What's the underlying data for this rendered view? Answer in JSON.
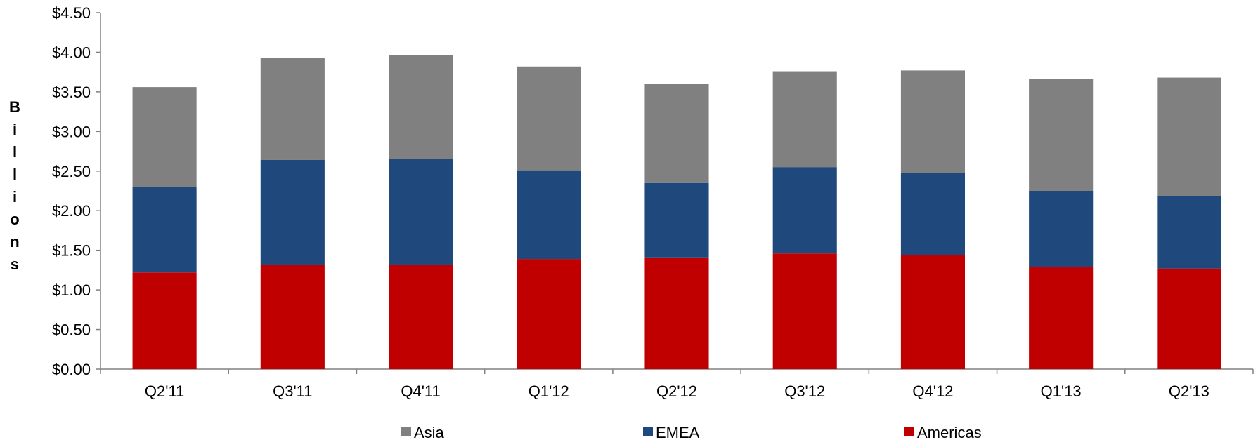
{
  "chart_data": {
    "type": "bar",
    "stacked": true,
    "categories": [
      "Q2'11",
      "Q3'11",
      "Q4'11",
      "Q1'12",
      "Q2'12",
      "Q3'12",
      "Q4'12",
      "Q1'13",
      "Q2'13"
    ],
    "series": [
      {
        "name": "Americas",
        "color": "#c00000",
        "values": [
          1.22,
          1.32,
          1.32,
          1.39,
          1.41,
          1.46,
          1.44,
          1.29,
          1.27
        ]
      },
      {
        "name": "EMEA",
        "color": "#1f497d",
        "values": [
          1.08,
          1.32,
          1.33,
          1.12,
          0.94,
          1.09,
          1.04,
          0.96,
          0.91
        ]
      },
      {
        "name": "Asia",
        "color": "#808080",
        "values": [
          1.26,
          1.29,
          1.31,
          1.31,
          1.25,
          1.21,
          1.29,
          1.41,
          1.5
        ]
      }
    ],
    "title": "",
    "xlabel": "",
    "ylabel": "Billions",
    "ylim": [
      0,
      4.5
    ],
    "yticks": [
      "$0.00",
      "$0.50",
      "$1.00",
      "$1.50",
      "$2.00",
      "$2.50",
      "$3.00",
      "$3.50",
      "$4.00",
      "$4.50"
    ],
    "legend": {
      "placement": "bottom",
      "order": [
        "Asia",
        "EMEA",
        "Americas"
      ]
    },
    "grid": false
  }
}
